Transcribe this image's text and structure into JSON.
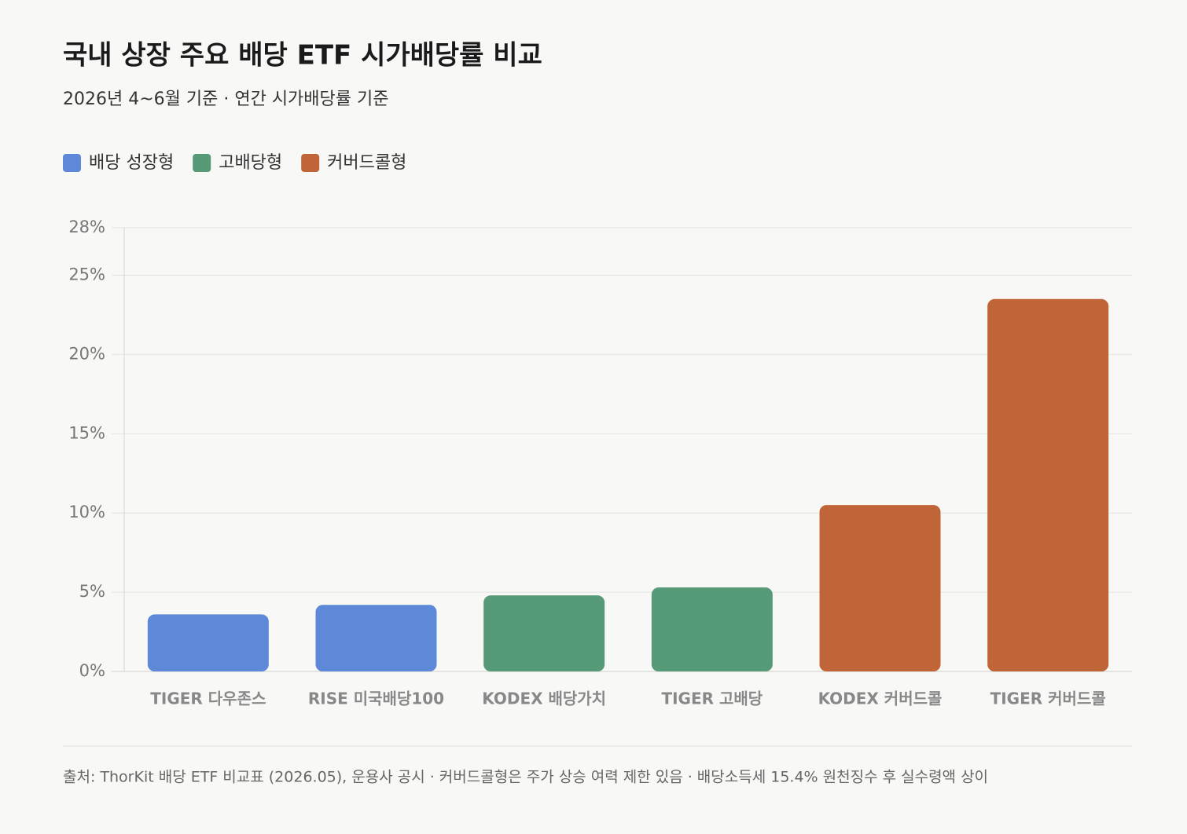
{
  "chart_data": {
    "type": "bar",
    "title": "국내 상장 주요 배당 ETF 시가배당률 비교",
    "subtitle": "2026년 4~6월 기준 · 연간 시가배당률 기준",
    "categories": [
      "TIGER 다우존스",
      "RISE 미국배당100",
      "KODEX 배당가치",
      "TIGER 고배당",
      "KODEX 커버드콜",
      "TIGER 커버드콜"
    ],
    "series": [
      {
        "name": "배당 성장형",
        "color": "#5e88d8",
        "values": [
          3.6,
          4.2,
          null,
          null,
          null,
          null
        ]
      },
      {
        "name": "고배당형",
        "color": "#569a78",
        "values": [
          null,
          null,
          4.8,
          5.3,
          null,
          null
        ]
      },
      {
        "name": "커버드콜형",
        "color": "#c06538",
        "values": [
          null,
          null,
          null,
          null,
          10.5,
          23.5
        ]
      }
    ],
    "ylim": [
      0,
      28
    ],
    "yticks": [
      {
        "value": 0,
        "label": "0%"
      },
      {
        "value": 5,
        "label": "5%"
      },
      {
        "value": 10,
        "label": "10%"
      },
      {
        "value": 15,
        "label": "15%"
      },
      {
        "value": 20,
        "label": "20%"
      },
      {
        "value": 25,
        "label": "25%"
      },
      {
        "value": 28,
        "label": "28%"
      }
    ],
    "grid": true,
    "legend": "top-left",
    "source": "출처: ThorKit 배당 ETF 비교표 (2026.05), 운용사 공시 · 커버드콜형은 주가 상승 여력 제한 있음 · 배당소득세 15.4% 원천징수 후 실수령액 상이"
  }
}
